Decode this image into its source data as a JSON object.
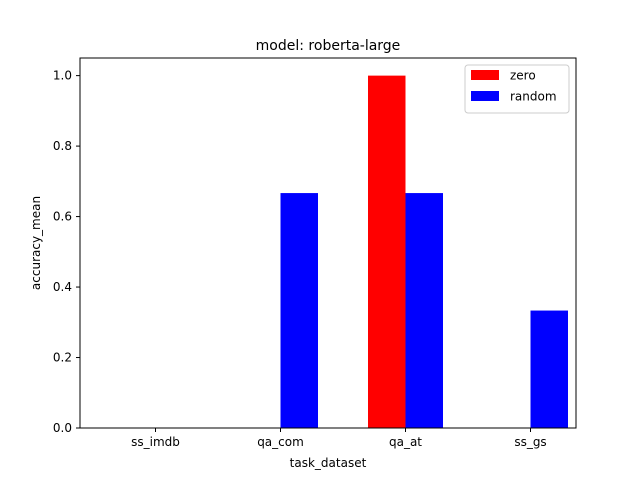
{
  "chart_data": {
    "type": "bar",
    "title": "model: roberta-large",
    "xlabel": "task_dataset",
    "ylabel": "accuracy_mean",
    "categories": [
      "ss_imdb",
      "qa_com",
      "qa_at",
      "ss_gs"
    ],
    "series": [
      {
        "name": "zero",
        "color": "#ff0000",
        "values": [
          0.0,
          0.0,
          1.0,
          0.0
        ]
      },
      {
        "name": "random",
        "color": "#0000ff",
        "values": [
          0.0,
          0.6667,
          0.6667,
          0.3333
        ]
      }
    ],
    "ylim": [
      0,
      1.05
    ],
    "yticks": [
      "0.0",
      "0.2",
      "0.4",
      "0.6",
      "0.8",
      "1.0"
    ],
    "grid": false,
    "legend_position": "top-right"
  }
}
